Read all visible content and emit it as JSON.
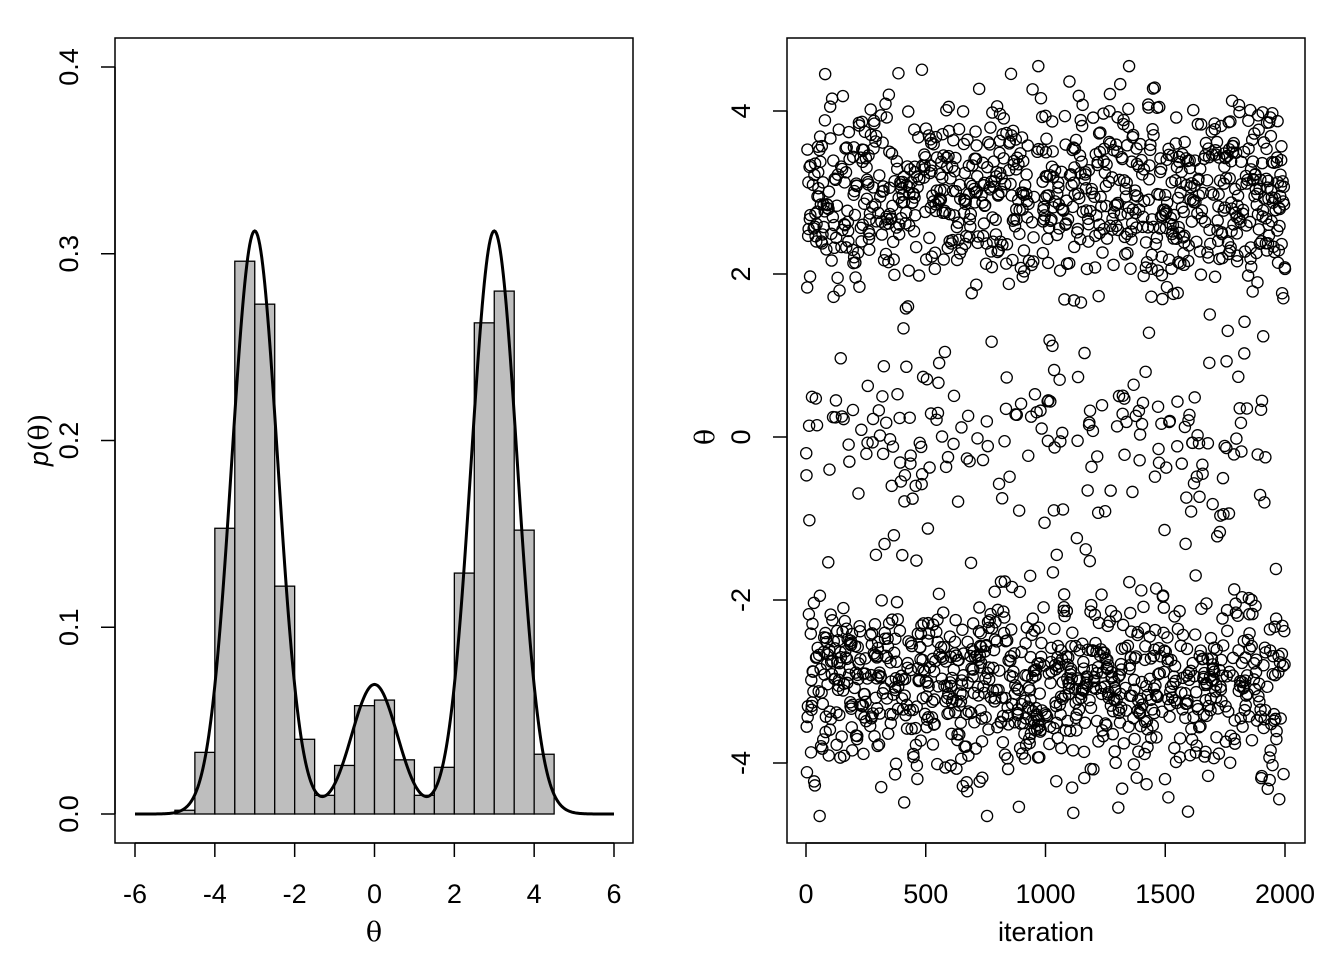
{
  "chart_data": [
    {
      "type": "bar",
      "subtype": "histogram-with-density",
      "xlabel": "θ",
      "ylabel_prefix": "p",
      "ylabel_arg": "(θ)",
      "xlim": [
        -6,
        6
      ],
      "ylim": [
        0,
        0.4
      ],
      "xticks": [
        -6,
        -4,
        -2,
        0,
        2,
        4,
        6
      ],
      "xtick_labels": [
        "-6",
        "-4",
        "-2",
        "0",
        "2",
        "4",
        "6"
      ],
      "yticks": [
        0,
        0.1,
        0.2,
        0.3,
        0.4
      ],
      "ytick_labels": [
        "0.0",
        "0.1",
        "0.2",
        "0.3",
        "0.4"
      ],
      "bin_width": 0.5,
      "bin_edges": [
        -5,
        -4.5,
        -4,
        -3.5,
        -3,
        -2.5,
        -2,
        -1.5,
        -1,
        -0.5,
        0,
        0.5,
        1,
        1.5,
        2,
        2.5,
        3,
        3.5,
        4,
        4.5
      ],
      "bin_values": [
        0.002,
        0.033,
        0.153,
        0.296,
        0.273,
        0.122,
        0.04,
        0.01,
        0.026,
        0.058,
        0.061,
        0.029,
        0.01,
        0.025,
        0.129,
        0.263,
        0.28,
        0.152,
        0.032
      ],
      "bar_fill": "#bebebe",
      "density_curve": {
        "components": [
          {
            "weight": 0.45,
            "mean": -3,
            "sd": 0.575
          },
          {
            "weight": 0.1,
            "mean": 0,
            "sd": 0.575
          },
          {
            "weight": 0.45,
            "mean": 3,
            "sd": 0.575
          }
        ],
        "x_range": [
          -6,
          6
        ],
        "peak_values": [
          0.313,
          0.069,
          0.313
        ]
      },
      "grid": false,
      "legend": "none"
    },
    {
      "type": "scatter",
      "subtype": "trace-plot",
      "xlabel": "iteration",
      "ylabel": "θ",
      "xlim": [
        0,
        2000
      ],
      "ylim": [
        -4.7,
        4.5
      ],
      "xticks": [
        0,
        500,
        1000,
        1500,
        2000
      ],
      "xtick_labels": [
        "0",
        "500",
        "1000",
        "1500",
        "2000"
      ],
      "yticks": [
        -4,
        -2,
        0,
        2,
        4
      ],
      "ytick_labels": [
        "-4",
        "-2",
        "0",
        "2",
        "4"
      ],
      "n_points": 2000,
      "marker": "open-circle",
      "point_distribution": {
        "modes": [
          {
            "weight": 0.45,
            "mean": -3,
            "sd": 0.575
          },
          {
            "weight": 0.1,
            "mean": 0,
            "sd": 0.575
          },
          {
            "weight": 0.45,
            "mean": 3,
            "sd": 0.575
          }
        ],
        "observed_min": -4.65,
        "observed_max": 4.55
      },
      "grid": false,
      "legend": "none"
    }
  ]
}
